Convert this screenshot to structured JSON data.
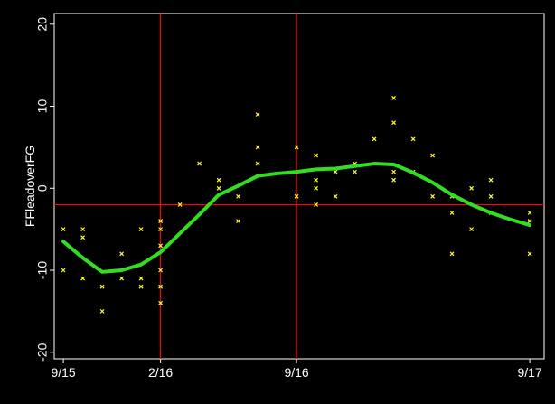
{
  "chart_data": {
    "type": "scatter",
    "y_label": "FFleadoverFG",
    "xlim": [
      -0.47,
      24.74
    ],
    "ylim": [
      -20.8,
      21.3
    ],
    "xticks": [
      {
        "value": 0,
        "label": "9/15"
      },
      {
        "value": 5,
        "label": "2/16"
      },
      {
        "value": 12,
        "label": "9/16"
      },
      {
        "value": 24,
        "label": "9/17"
      }
    ],
    "yticks": [
      -20,
      -10,
      0,
      10,
      20
    ],
    "ref_color": "#ff0000",
    "vlines": [
      5,
      12
    ],
    "hlines": [
      -2
    ],
    "series": [
      {
        "kind": "points",
        "color": "#ffff33",
        "x": [
          0,
          0,
          1,
          1,
          1,
          2,
          2,
          3,
          3,
          4,
          4,
          4,
          5,
          5,
          5,
          5,
          5,
          5,
          6,
          7,
          8,
          8,
          9,
          9,
          10,
          10,
          10,
          12,
          12,
          13,
          13,
          13,
          13,
          14,
          14,
          15,
          15,
          16,
          17,
          17,
          17,
          17,
          18,
          18,
          19,
          19,
          20,
          20,
          20,
          21,
          21,
          22,
          22,
          22,
          24,
          24,
          24
        ],
        "values": [
          -5,
          -10,
          -5,
          -6,
          -11,
          -12,
          -15,
          -8,
          -11,
          -5,
          -11,
          -12,
          -4,
          -5,
          -7,
          -10,
          -12,
          -14,
          -2,
          3,
          1,
          0,
          -1,
          -4,
          9,
          5,
          3,
          5,
          -1,
          4,
          1,
          0,
          -2,
          2,
          -1,
          3,
          2,
          6,
          11,
          8,
          2,
          1,
          6,
          2,
          4,
          -1,
          -1,
          -3,
          -8,
          0,
          -5,
          1,
          -1,
          -3,
          -3,
          -4,
          -8
        ]
      },
      {
        "kind": "line",
        "color": "#33dd22",
        "x": [
          0,
          1,
          2,
          3,
          4,
          5,
          6,
          7,
          8,
          9,
          10,
          11,
          12,
          13,
          14,
          15,
          16,
          17,
          18,
          19,
          20,
          21,
          22,
          23,
          24
        ],
        "values": [
          -6.5,
          -8.5,
          -10.2,
          -10,
          -9.3,
          -7.8,
          -5.5,
          -3.2,
          -0.8,
          0.3,
          1.5,
          1.8,
          2.0,
          2.3,
          2.4,
          2.7,
          3.0,
          2.9,
          1.9,
          0.7,
          -0.8,
          -2,
          -3,
          -3.8,
          -4.5
        ]
      }
    ]
  }
}
